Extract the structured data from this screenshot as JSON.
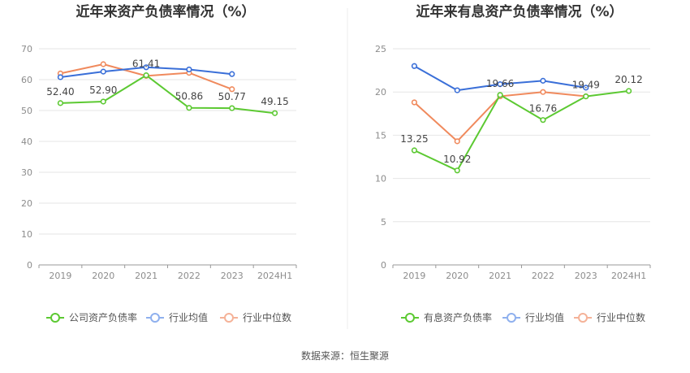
{
  "footer": {
    "source": "数据来源：恒生聚源"
  },
  "chart_data": [
    {
      "type": "line",
      "title": "近年来资产负债率情况（%）",
      "categories": [
        "2019",
        "2020",
        "2021",
        "2022",
        "2023",
        "2024H1"
      ],
      "ylim": [
        0,
        70
      ],
      "yticks": [
        0,
        10,
        20,
        30,
        40,
        50,
        60,
        70
      ],
      "grid": true,
      "legend_position": "bottom",
      "series": [
        {
          "name": "公司资产负债率",
          "color": "#5cc932",
          "values": [
            52.4,
            52.9,
            61.41,
            50.86,
            50.77,
            49.15
          ],
          "labels": [
            "52.40",
            "52.90",
            "61.41",
            "50.86",
            "50.77",
            "49.15"
          ]
        },
        {
          "name": "行业均值",
          "color": "#3a6fd8",
          "values": [
            60.8,
            62.6,
            64.0,
            63.3,
            61.8,
            null
          ]
        },
        {
          "name": "行业中位数",
          "color": "#f08a5d",
          "values": [
            62.0,
            65.0,
            61.2,
            62.2,
            56.9,
            null
          ]
        }
      ]
    },
    {
      "type": "line",
      "title": "近年来有息资产负债率情况（%）",
      "categories": [
        "2019",
        "2020",
        "2021",
        "2022",
        "2023",
        "2024H1"
      ],
      "ylim": [
        0,
        25
      ],
      "yticks": [
        0,
        5,
        10,
        15,
        20,
        25
      ],
      "grid": true,
      "legend_position": "bottom",
      "series": [
        {
          "name": "有息资产负债率",
          "color": "#5cc932",
          "values": [
            13.25,
            10.92,
            19.66,
            16.76,
            19.49,
            20.12
          ],
          "labels": [
            "13.25",
            "10.92",
            "19.66",
            "16.76",
            "19.49",
            "20.12"
          ]
        },
        {
          "name": "行业均值",
          "color": "#3a6fd8",
          "values": [
            23.0,
            20.2,
            20.9,
            21.3,
            20.5,
            null
          ]
        },
        {
          "name": "行业中位数",
          "color": "#f08a5d",
          "values": [
            18.8,
            14.3,
            19.5,
            20.0,
            19.5,
            null
          ]
        }
      ]
    }
  ]
}
